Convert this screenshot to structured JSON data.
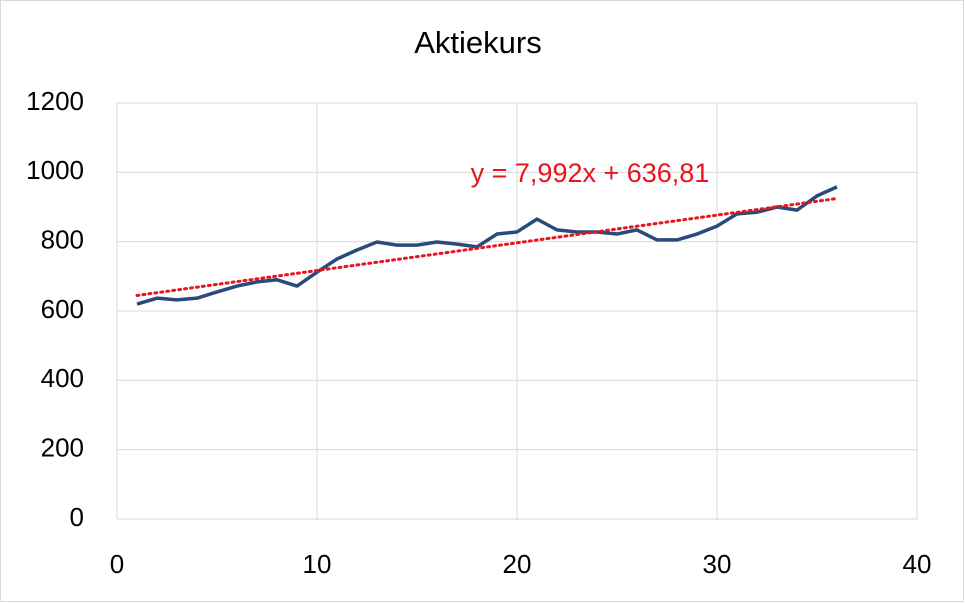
{
  "chart_data": {
    "type": "line",
    "title": "Aktiekurs",
    "x": [
      1,
      2,
      3,
      4,
      5,
      6,
      7,
      8,
      9,
      10,
      11,
      12,
      13,
      14,
      15,
      16,
      17,
      18,
      19,
      20,
      21,
      22,
      23,
      24,
      25,
      26,
      27,
      28,
      29,
      30,
      31,
      32,
      33,
      34,
      35,
      36
    ],
    "series": [
      {
        "color": "#2a4a7b",
        "values": [
          620,
          637,
          632,
          637,
          655,
          672,
          684,
          690,
          672,
          712,
          750,
          776,
          799,
          790,
          790,
          799,
          793,
          785,
          822,
          828,
          865,
          834,
          828,
          828,
          822,
          834,
          805,
          805,
          822,
          845,
          880,
          885,
          900,
          891,
          932,
          958
        ]
      }
    ],
    "trendline": {
      "slope": 7.992,
      "intercept": 636.81,
      "label": "y = 7,992x + 636,81",
      "color": "#e8141e"
    },
    "xlim": [
      0,
      40
    ],
    "xticks": [
      0,
      10,
      20,
      30,
      40
    ],
    "ylim": [
      0,
      1200
    ],
    "yticks": [
      0,
      200,
      400,
      600,
      800,
      1000,
      1200
    ],
    "grid": true
  }
}
